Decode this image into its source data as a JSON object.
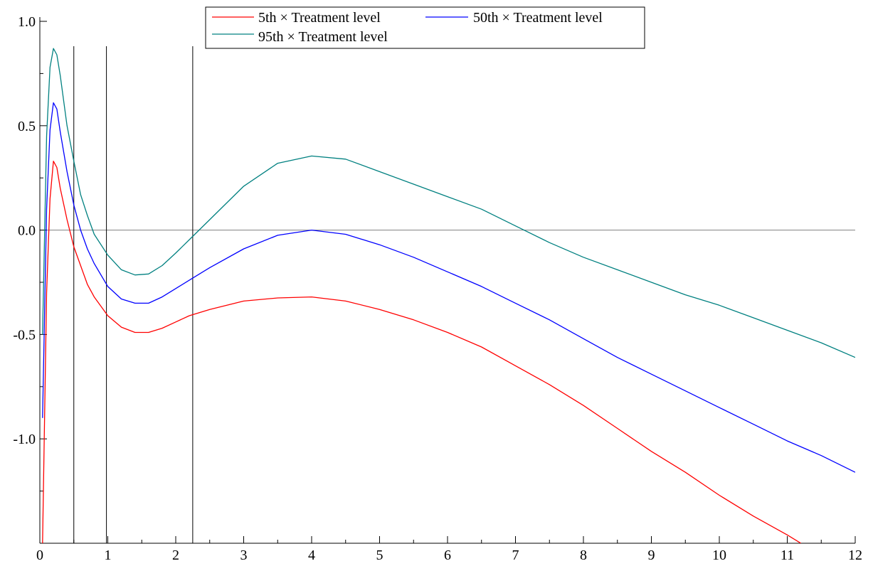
{
  "chart_data": {
    "type": "line",
    "title": "",
    "xlabel": "",
    "ylabel": "",
    "xlim": [
      0,
      12
    ],
    "ylim": [
      -1.5,
      1.0
    ],
    "x_ticks": [
      "0",
      "1",
      "2",
      "3",
      "4",
      "5",
      "6",
      "7",
      "8",
      "9",
      "10",
      "11",
      "12"
    ],
    "y_ticks": [
      {
        "value": 1.0,
        "label": "1.0"
      },
      {
        "value": 0.5,
        "label": "0.5"
      },
      {
        "value": 0.0,
        "label": "0.0"
      },
      {
        "value": -0.5,
        "label": "-0.5"
      },
      {
        "value": -1.0,
        "label": "-1.0"
      }
    ],
    "reference_hline": 0.0,
    "reference_vlines": [
      0.5,
      0.98,
      2.25
    ],
    "grid": false,
    "legend_position": "top",
    "series": [
      {
        "name": "5th × Treatment level",
        "color": "#ff0000",
        "points": [
          [
            0.04,
            -1.5
          ],
          [
            0.1,
            -0.3
          ],
          [
            0.15,
            0.15
          ],
          [
            0.2,
            0.33
          ],
          [
            0.25,
            0.3
          ],
          [
            0.3,
            0.2
          ],
          [
            0.4,
            0.05
          ],
          [
            0.5,
            -0.08
          ],
          [
            0.6,
            -0.17
          ],
          [
            0.7,
            -0.26
          ],
          [
            0.8,
            -0.32
          ],
          [
            1.0,
            -0.41
          ],
          [
            1.2,
            -0.465
          ],
          [
            1.4,
            -0.49
          ],
          [
            1.6,
            -0.49
          ],
          [
            1.8,
            -0.47
          ],
          [
            2.0,
            -0.44
          ],
          [
            2.2,
            -0.41
          ],
          [
            2.5,
            -0.38
          ],
          [
            3.0,
            -0.34
          ],
          [
            3.5,
            -0.325
          ],
          [
            4.0,
            -0.32
          ],
          [
            4.5,
            -0.34
          ],
          [
            5.0,
            -0.38
          ],
          [
            5.5,
            -0.43
          ],
          [
            6.0,
            -0.49
          ],
          [
            6.5,
            -0.56
          ],
          [
            7.0,
            -0.65
          ],
          [
            7.5,
            -0.74
          ],
          [
            8.0,
            -0.84
          ],
          [
            8.5,
            -0.95
          ],
          [
            9.0,
            -1.06
          ],
          [
            9.5,
            -1.16
          ],
          [
            10.0,
            -1.27
          ],
          [
            10.5,
            -1.37
          ],
          [
            11.0,
            -1.46
          ],
          [
            11.2,
            -1.5
          ]
        ]
      },
      {
        "name": "50th × Treatment level",
        "color": "#0000ff",
        "points": [
          [
            0.04,
            -0.9
          ],
          [
            0.1,
            0.1
          ],
          [
            0.15,
            0.48
          ],
          [
            0.2,
            0.61
          ],
          [
            0.25,
            0.58
          ],
          [
            0.3,
            0.47
          ],
          [
            0.4,
            0.28
          ],
          [
            0.5,
            0.12
          ],
          [
            0.6,
            0.0
          ],
          [
            0.7,
            -0.09
          ],
          [
            0.8,
            -0.16
          ],
          [
            1.0,
            -0.27
          ],
          [
            1.2,
            -0.33
          ],
          [
            1.4,
            -0.35
          ],
          [
            1.6,
            -0.35
          ],
          [
            1.8,
            -0.32
          ],
          [
            2.0,
            -0.28
          ],
          [
            2.25,
            -0.23
          ],
          [
            2.5,
            -0.18
          ],
          [
            3.0,
            -0.09
          ],
          [
            3.5,
            -0.025
          ],
          [
            4.0,
            0.0
          ],
          [
            4.5,
            -0.02
          ],
          [
            5.0,
            -0.07
          ],
          [
            5.5,
            -0.13
          ],
          [
            6.0,
            -0.2
          ],
          [
            6.5,
            -0.27
          ],
          [
            7.0,
            -0.35
          ],
          [
            7.5,
            -0.43
          ],
          [
            8.0,
            -0.52
          ],
          [
            8.5,
            -0.61
          ],
          [
            9.0,
            -0.69
          ],
          [
            9.5,
            -0.77
          ],
          [
            10.0,
            -0.85
          ],
          [
            10.5,
            -0.93
          ],
          [
            11.0,
            -1.01
          ],
          [
            11.5,
            -1.08
          ],
          [
            12.0,
            -1.16
          ]
        ]
      },
      {
        "name": "95th × Treatment level",
        "color": "#008080",
        "points": [
          [
            0.04,
            -0.5
          ],
          [
            0.1,
            0.45
          ],
          [
            0.15,
            0.78
          ],
          [
            0.2,
            0.87
          ],
          [
            0.25,
            0.84
          ],
          [
            0.3,
            0.74
          ],
          [
            0.4,
            0.5
          ],
          [
            0.5,
            0.33
          ],
          [
            0.6,
            0.17
          ],
          [
            0.7,
            0.07
          ],
          [
            0.8,
            -0.02
          ],
          [
            1.0,
            -0.12
          ],
          [
            1.2,
            -0.19
          ],
          [
            1.4,
            -0.215
          ],
          [
            1.6,
            -0.21
          ],
          [
            1.8,
            -0.17
          ],
          [
            2.0,
            -0.11
          ],
          [
            2.25,
            -0.03
          ],
          [
            2.5,
            0.05
          ],
          [
            3.0,
            0.21
          ],
          [
            3.5,
            0.32
          ],
          [
            4.0,
            0.355
          ],
          [
            4.5,
            0.34
          ],
          [
            5.0,
            0.28
          ],
          [
            5.5,
            0.22
          ],
          [
            6.0,
            0.16
          ],
          [
            6.5,
            0.1
          ],
          [
            7.0,
            0.02
          ],
          [
            7.5,
            -0.06
          ],
          [
            8.0,
            -0.13
          ],
          [
            8.5,
            -0.19
          ],
          [
            9.0,
            -0.25
          ],
          [
            9.5,
            -0.31
          ],
          [
            10.0,
            -0.36
          ],
          [
            10.5,
            -0.42
          ],
          [
            11.0,
            -0.48
          ],
          [
            11.5,
            -0.54
          ],
          [
            12.0,
            -0.61
          ]
        ]
      }
    ]
  }
}
